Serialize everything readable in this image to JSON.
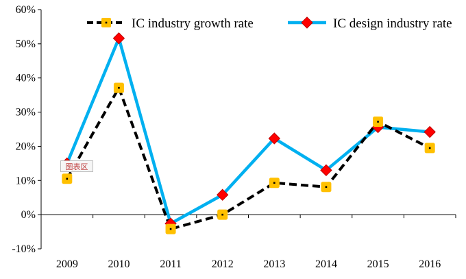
{
  "chart_data": {
    "type": "line",
    "title": "",
    "xlabel": "",
    "ylabel": "",
    "categories": [
      "2009",
      "2010",
      "2011",
      "2012",
      "2013",
      "2014",
      "2015",
      "2016"
    ],
    "ylim": [
      -10,
      60
    ],
    "yticks": [
      -10,
      0,
      10,
      20,
      30,
      40,
      50,
      60
    ],
    "ytick_labels": [
      "-10%",
      "0%",
      "10%",
      "20%",
      "30%",
      "40%",
      "50%",
      "60%"
    ],
    "legend_position": "top-right",
    "grid": false,
    "series": [
      {
        "name": "IC industry growth rate",
        "values": [
          10.5,
          37.1,
          -4.2,
          0.0,
          9.3,
          8.1,
          27.2,
          19.5
        ],
        "line_color": "#000000",
        "line_style": "dashed",
        "marker": "square",
        "marker_color": "#FFC000"
      },
      {
        "name": "IC design industry rate",
        "values": [
          15.0,
          51.6,
          -2.6,
          5.8,
          22.3,
          13.0,
          25.6,
          24.2
        ],
        "line_color": "#00B0F0",
        "line_style": "solid",
        "marker": "diamond",
        "marker_color": "#FF0000"
      }
    ]
  },
  "overlay": {
    "stray_label": "图表区"
  }
}
